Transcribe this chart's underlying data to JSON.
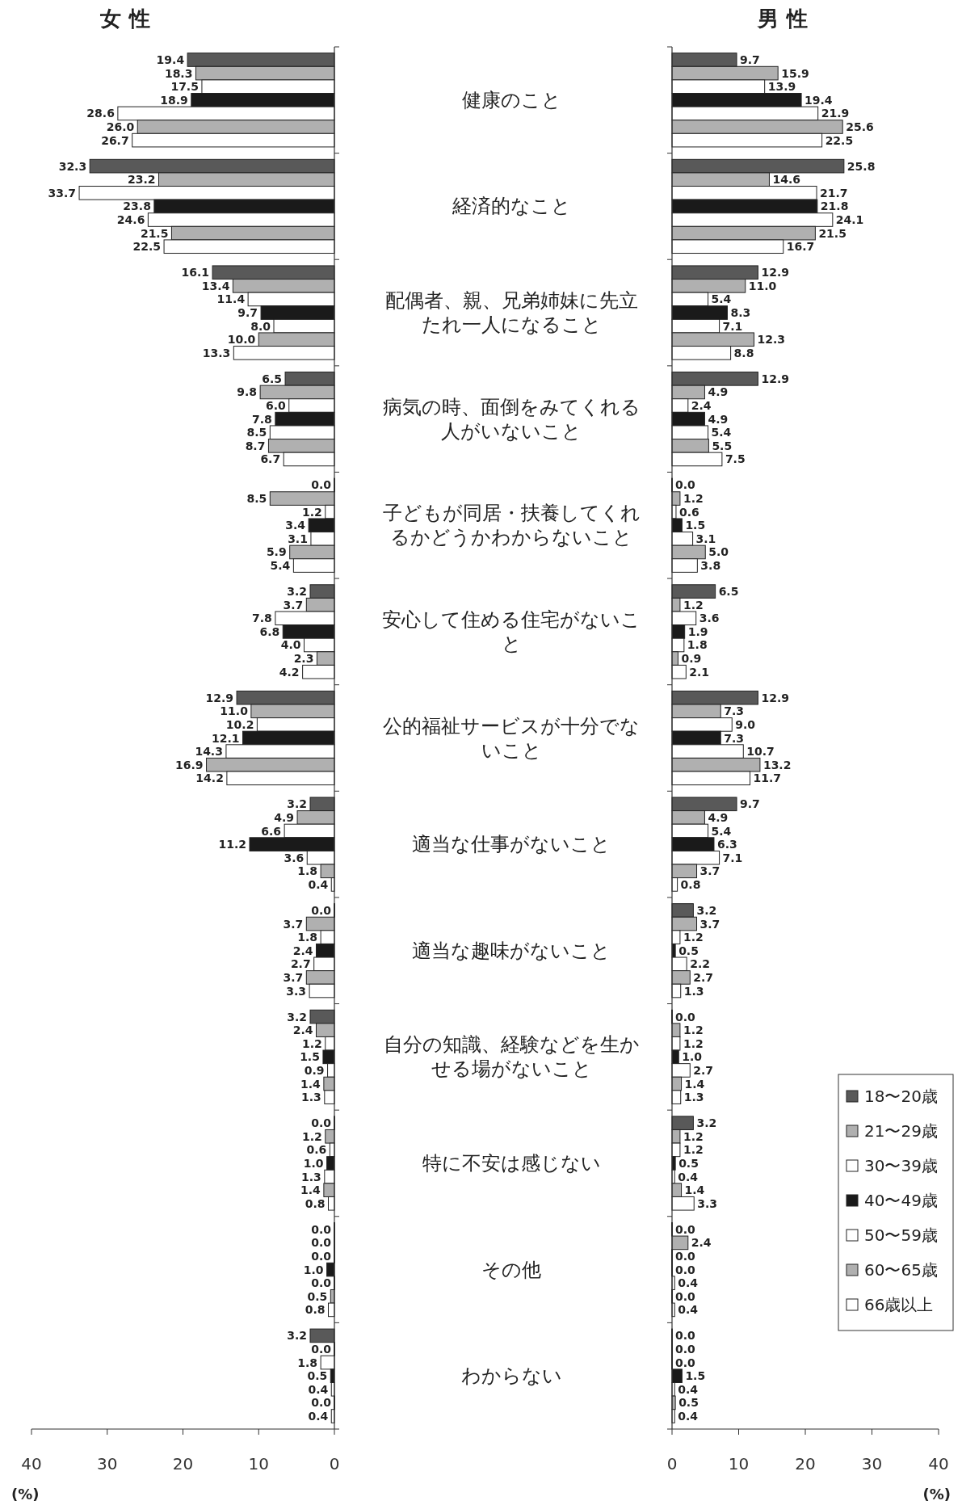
{
  "chart_data": [
    {
      "type": "bar",
      "orientation": "horizontal",
      "title": "女 性",
      "xlabel": "(%)",
      "xlim": [
        40,
        0
      ],
      "xticks": [
        40,
        30,
        20,
        10,
        0
      ],
      "data_labels": true,
      "categories": [
        "健康のこと",
        "経済的なこと",
        "配偶者、親、兄弟姉妹に先立たれ一人になること",
        "病気の時、面倒をみてくれる人がいないこと",
        "子どもが同居・扶養してくれるかどうかわからないこと",
        "安心して住める住宅がないこと",
        "公的福祉サービスが十分でないこと",
        "適当な仕事がないこと",
        "適当な趣味がないこと",
        "自分の知識、経験などを生かせる場がないこと",
        "特に不安は感じない",
        "その他",
        "わからない"
      ],
      "series": [
        {
          "color": "#595959",
          "values": [
            19.4,
            32.3,
            16.1,
            6.5,
            0,
            3.2,
            12.9,
            3.2,
            0,
            3.2,
            0,
            0,
            3.2
          ],
          "value_labels": [
            "19.4",
            "32.3",
            "16.1",
            "6.5",
            "0.0",
            "3.2",
            "12.9",
            "3.2",
            "0.0",
            "3.2",
            "0.0",
            "0.0",
            "3.2"
          ]
        },
        {
          "color": "#b0b0b0",
          "values": [
            18.3,
            23.2,
            13.4,
            9.8,
            8.5,
            3.7,
            11,
            4.9,
            3.7,
            2.4,
            1.2,
            0,
            0
          ],
          "value_labels": [
            "18.3",
            "23.2",
            "13.4",
            "9.8",
            "8.5",
            "3.7",
            "11.0",
            "4.9",
            "3.7",
            "2.4",
            "1.2",
            "0.0",
            "0.0"
          ]
        },
        {
          "color": "#ffffff",
          "values": [
            17.5,
            33.7,
            11.4,
            6,
            1.2,
            7.8,
            10.2,
            6.6,
            1.8,
            1.2,
            0.6,
            0,
            1.8
          ],
          "value_labels": [
            "17.5",
            "33.7",
            "11.4",
            "6.0",
            "1.2",
            "7.8",
            "10.2",
            "6.6",
            "1.8",
            "1.2",
            "0.6",
            "0.0",
            "1.8"
          ]
        },
        {
          "color": "#1a1a1a",
          "values": [
            18.9,
            23.8,
            9.7,
            7.8,
            3.4,
            6.8,
            12.1,
            11.2,
            2.4,
            1.5,
            1,
            1,
            0.5
          ],
          "value_labels": [
            "18.9",
            "23.8",
            "9.7",
            "7.8",
            "3.4",
            "6.8",
            "12.1",
            "11.2",
            "2.4",
            "1.5",
            "1.0",
            "1.0",
            "0.5"
          ]
        },
        {
          "color": "#ffffff",
          "values": [
            28.6,
            24.6,
            8,
            8.5,
            3.1,
            4,
            14.3,
            3.6,
            2.7,
            0.9,
            1.3,
            0,
            0.4
          ],
          "value_labels": [
            "28.6",
            "24.6",
            "8.0",
            "8.5",
            "3.1",
            "4.0",
            "14.3",
            "3.6",
            "2.7",
            "0.9",
            "1.3",
            "0.0",
            "0.4"
          ]
        },
        {
          "color": "#b0b0b0",
          "values": [
            26,
            21.5,
            10,
            8.7,
            5.9,
            2.3,
            16.9,
            1.8,
            3.7,
            1.4,
            1.4,
            0.5,
            0
          ],
          "value_labels": [
            "26.0",
            "21.5",
            "10.0",
            "8.7",
            "5.9",
            "2.3",
            "16.9",
            "1.8",
            "3.7",
            "1.4",
            "1.4",
            "0.5",
            "0.0"
          ]
        },
        {
          "color": "#ffffff",
          "values": [
            26.7,
            22.5,
            13.3,
            6.7,
            5.4,
            4.2,
            14.2,
            0.4,
            3.3,
            1.3,
            0.8,
            0.8,
            0.4
          ],
          "value_labels": [
            "26.7",
            "22.5",
            "13.3",
            "6.7",
            "5.4",
            "4.2",
            "14.2",
            "0.4",
            "3.3",
            "1.3",
            "0.8",
            "0.8",
            "0.4"
          ]
        }
      ]
    },
    {
      "type": "bar",
      "orientation": "horizontal",
      "title": "男 性",
      "xlabel": "(%)",
      "xlim": [
        0,
        40
      ],
      "xticks": [
        0,
        10,
        20,
        30,
        40
      ],
      "data_labels": true,
      "tick_labels": "x",
      "legend": "bottom right",
      "categories": [
        null,
        null,
        null,
        null,
        null,
        null,
        null,
        null,
        null,
        null,
        null,
        null,
        null
      ],
      "series": [
        {
          "name": "18〜20歳",
          "color": "#595959",
          "values": [
            9.7,
            25.8,
            12.9,
            12.9,
            0,
            6.5,
            12.9,
            9.7,
            3.2,
            0,
            3.2,
            0,
            0
          ],
          "value_labels": [
            "9.7",
            "25.8",
            "12.9",
            "12.9",
            "0.0",
            "6.5",
            "12.9",
            "9.7",
            "3.2",
            "0.0",
            "3.2",
            "0.0",
            "0.0"
          ]
        },
        {
          "name": "21〜29歳",
          "color": "#b0b0b0",
          "values": [
            15.9,
            14.6,
            11,
            4.9,
            1.2,
            1.2,
            7.3,
            4.9,
            3.7,
            1.2,
            1.2,
            2.4,
            0
          ],
          "value_labels": [
            "15.9",
            "14.6",
            "11.0",
            "4.9",
            "1.2",
            "1.2",
            "7.3",
            "4.9",
            "3.7",
            "1.2",
            "1.2",
            "2.4",
            "0.0"
          ]
        },
        {
          "name": "30〜39歳",
          "color": "#ffffff",
          "values": [
            13.9,
            21.7,
            5.4,
            2.4,
            0.6,
            3.6,
            9,
            5.4,
            1.2,
            1.2,
            1.2,
            0,
            0
          ],
          "value_labels": [
            "13.9",
            "21.7",
            "5.4",
            "2.4",
            "0.6",
            "3.6",
            "9.0",
            "5.4",
            "1.2",
            "1.2",
            "1.2",
            "0.0",
            "0.0"
          ]
        },
        {
          "name": "40〜49歳",
          "color": "#1a1a1a",
          "values": [
            19.4,
            21.8,
            8.3,
            4.9,
            1.5,
            1.9,
            7.3,
            6.3,
            0.5,
            1,
            0.5,
            0,
            1.5
          ],
          "value_labels": [
            "19.4",
            "21.8",
            "8.3",
            "4.9",
            "1.5",
            "1.9",
            "7.3",
            "6.3",
            "0.5",
            "1.0",
            "0.5",
            "0.0",
            "1.5"
          ]
        },
        {
          "name": "50〜59歳",
          "color": "#ffffff",
          "values": [
            21.9,
            24.1,
            7.1,
            5.4,
            3.1,
            1.8,
            10.7,
            7.1,
            2.2,
            2.7,
            0.4,
            0.4,
            0.4
          ],
          "value_labels": [
            "21.9",
            "24.1",
            "7.1",
            "5.4",
            "3.1",
            "1.8",
            "10.7",
            "7.1",
            "2.2",
            "2.7",
            "0.4",
            "0.4",
            "0.4"
          ]
        },
        {
          "name": "60〜65歳",
          "color": "#b0b0b0",
          "values": [
            25.6,
            21.5,
            12.3,
            5.5,
            5,
            0.9,
            13.2,
            3.7,
            2.7,
            1.4,
            1.4,
            0,
            0.5
          ],
          "value_labels": [
            "25.6",
            "21.5",
            "12.3",
            "5.5",
            "5.0",
            "0.9",
            "13.2",
            "3.7",
            "2.7",
            "1.4",
            "1.4",
            "0.0",
            "0.5"
          ]
        },
        {
          "name": "66歳以上",
          "color": "#ffffff",
          "values": [
            22.5,
            16.7,
            8.8,
            7.5,
            3.8,
            2.1,
            11.7,
            0.8,
            1.3,
            1.3,
            3.3,
            0.4,
            0.4
          ],
          "value_labels": [
            "22.5",
            "16.7",
            "8.8",
            "7.5",
            "3.8",
            "2.1",
            "11.7",
            "0.8",
            "1.3",
            "1.3",
            "3.3",
            "0.4",
            "0.4"
          ]
        }
      ]
    }
  ]
}
